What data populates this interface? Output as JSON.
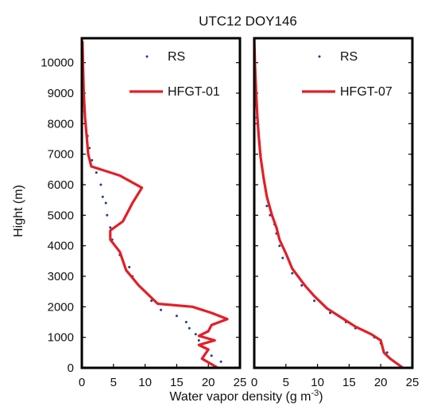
{
  "chart_data": {
    "type": "line",
    "title": "UTC12 DOY146",
    "xlabel": "Water vapor density (g m",
    "xlabel_sup": "-3",
    "xlabel_end": ")",
    "ylabel": "Hight (m)",
    "ylim": [
      0,
      10800
    ],
    "xlim": [
      0,
      25
    ],
    "yticks": [
      0,
      1000,
      2000,
      3000,
      4000,
      5000,
      6000,
      7000,
      8000,
      9000,
      10000
    ],
    "xticks": [
      0,
      5,
      10,
      15,
      20,
      25
    ],
    "panels": [
      {
        "series": [
          {
            "name": "RS",
            "style": "dots",
            "points": [
              [
                23.0,
                0
              ],
              [
                22.0,
                200
              ],
              [
                20.5,
                400
              ],
              [
                19.0,
                700
              ],
              [
                18.5,
                900
              ],
              [
                18.0,
                1100
              ],
              [
                17.0,
                1300
              ],
              [
                16.5,
                1500
              ],
              [
                15.0,
                1700
              ],
              [
                12.5,
                1900
              ],
              [
                11.0,
                2200
              ],
              [
                9.5,
                2600
              ],
              [
                8.0,
                3000
              ],
              [
                7.5,
                3300
              ],
              [
                6.0,
                3700
              ],
              [
                4.8,
                4200
              ],
              [
                4.5,
                4600
              ],
              [
                4.0,
                5000
              ],
              [
                3.8,
                5400
              ],
              [
                3.3,
                5600
              ],
              [
                3.0,
                6000
              ],
              [
                2.3,
                6400
              ],
              [
                1.6,
                6800
              ],
              [
                1.2,
                7200
              ],
              [
                0.9,
                7600
              ],
              [
                0.6,
                8000
              ],
              [
                0.4,
                8400
              ],
              [
                0.3,
                8800
              ],
              [
                0.2,
                9200
              ],
              [
                0.15,
                9600
              ],
              [
                0.1,
                10000
              ],
              [
                0.05,
                10400
              ]
            ]
          },
          {
            "name": "HFGT-01",
            "style": "line",
            "points": [
              [
                21.5,
                0
              ],
              [
                19.0,
                300
              ],
              [
                20.0,
                600
              ],
              [
                18.5,
                750
              ],
              [
                21.0,
                900
              ],
              [
                18.5,
                1050
              ],
              [
                20.0,
                1200
              ],
              [
                20.5,
                1400
              ],
              [
                23.0,
                1600
              ],
              [
                20.5,
                1800
              ],
              [
                17.5,
                2000
              ],
              [
                12.0,
                2100
              ],
              [
                9.0,
                2700
              ],
              [
                7.0,
                3200
              ],
              [
                6.0,
                3800
              ],
              [
                4.5,
                4200
              ],
              [
                4.5,
                4500
              ],
              [
                6.5,
                4800
              ],
              [
                8.0,
                5400
              ],
              [
                9.5,
                5900
              ],
              [
                6.0,
                6300
              ],
              [
                1.5,
                6600
              ],
              [
                1.0,
                7000
              ],
              [
                0.8,
                7500
              ],
              [
                0.5,
                8200
              ],
              [
                0.3,
                9000
              ],
              [
                0.2,
                9800
              ],
              [
                0.1,
                10700
              ]
            ]
          }
        ]
      },
      {
        "series": [
          {
            "name": "RS",
            "style": "dots",
            "points": [
              [
                23.0,
                0
              ],
              [
                21.5,
                300
              ],
              [
                21.0,
                500
              ],
              [
                20.0,
                800
              ],
              [
                19.0,
                1000
              ],
              [
                17.5,
                1200
              ],
              [
                16.0,
                1300
              ],
              [
                14.5,
                1500
              ],
              [
                12.0,
                1800
              ],
              [
                9.5,
                2200
              ],
              [
                7.5,
                2700
              ],
              [
                6.0,
                3100
              ],
              [
                4.5,
                3600
              ],
              [
                4.0,
                4000
              ],
              [
                3.5,
                4400
              ],
              [
                3.2,
                4700
              ],
              [
                2.5,
                5000
              ],
              [
                2.0,
                5300
              ],
              [
                1.8,
                5800
              ],
              [
                1.5,
                6200
              ],
              [
                1.2,
                6600
              ],
              [
                1.0,
                7000
              ],
              [
                0.8,
                7400
              ],
              [
                0.6,
                7800
              ],
              [
                0.4,
                8200
              ],
              [
                0.3,
                8600
              ],
              [
                0.2,
                9000
              ],
              [
                0.1,
                9500
              ],
              [
                0.05,
                10000
              ]
            ]
          },
          {
            "name": "HFGT-07",
            "style": "line",
            "points": [
              [
                23.5,
                0
              ],
              [
                21.5,
                300
              ],
              [
                20.5,
                500
              ],
              [
                20.0,
                900
              ],
              [
                18.5,
                1100
              ],
              [
                16.0,
                1350
              ],
              [
                14.5,
                1550
              ],
              [
                11.5,
                1950
              ],
              [
                9.5,
                2350
              ],
              [
                8.0,
                2700
              ],
              [
                6.0,
                3250
              ],
              [
                5.0,
                3750
              ],
              [
                4.0,
                4200
              ],
              [
                3.5,
                4600
              ],
              [
                2.8,
                5000
              ],
              [
                2.0,
                5600
              ],
              [
                1.5,
                6200
              ],
              [
                1.0,
                6900
              ],
              [
                0.7,
                7600
              ],
              [
                0.5,
                8200
              ],
              [
                0.3,
                9000
              ],
              [
                0.1,
                10000
              ],
              [
                0.0,
                10800
              ]
            ]
          }
        ]
      }
    ],
    "colors": {
      "line": "#e41e26",
      "dots": "#1f3d8a"
    },
    "legend_placement": "top-right"
  }
}
